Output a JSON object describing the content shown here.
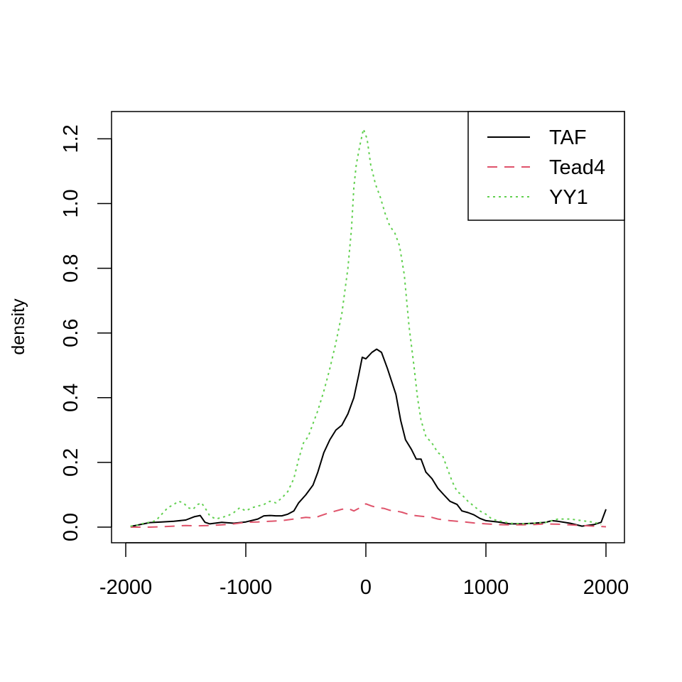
{
  "chart_data": {
    "type": "line",
    "title": "",
    "xlabel": "",
    "ylabel": "density",
    "xlim": [
      -2000,
      2000
    ],
    "ylim": [
      0,
      1.25
    ],
    "x_ticks": [
      "-2000",
      "-1000",
      "0",
      "1000",
      "2000"
    ],
    "y_ticks": [
      "0.0",
      "0.2",
      "0.4",
      "0.6",
      "0.8",
      "1.0",
      "1.2"
    ],
    "grid": false,
    "legend_position": "top-right",
    "series": [
      {
        "name": "TAF",
        "color": "#000000",
        "linestyle": "solid",
        "points": [
          [
            -1960,
            0.002
          ],
          [
            -1880,
            0.008
          ],
          [
            -1800,
            0.014
          ],
          [
            -1700,
            0.016
          ],
          [
            -1600,
            0.018
          ],
          [
            -1500,
            0.022
          ],
          [
            -1430,
            0.032
          ],
          [
            -1380,
            0.036
          ],
          [
            -1340,
            0.015
          ],
          [
            -1300,
            0.01
          ],
          [
            -1200,
            0.015
          ],
          [
            -1100,
            0.012
          ],
          [
            -1000,
            0.016
          ],
          [
            -900,
            0.025
          ],
          [
            -850,
            0.035
          ],
          [
            -800,
            0.036
          ],
          [
            -750,
            0.035
          ],
          [
            -700,
            0.035
          ],
          [
            -650,
            0.04
          ],
          [
            -600,
            0.05
          ],
          [
            -560,
            0.075
          ],
          [
            -500,
            0.1
          ],
          [
            -440,
            0.13
          ],
          [
            -400,
            0.17
          ],
          [
            -350,
            0.23
          ],
          [
            -300,
            0.27
          ],
          [
            -250,
            0.3
          ],
          [
            -200,
            0.315
          ],
          [
            -150,
            0.35
          ],
          [
            -100,
            0.4
          ],
          [
            -60,
            0.47
          ],
          [
            -30,
            0.525
          ],
          [
            0,
            0.52
          ],
          [
            50,
            0.54
          ],
          [
            90,
            0.55
          ],
          [
            130,
            0.54
          ],
          [
            180,
            0.49
          ],
          [
            250,
            0.41
          ],
          [
            290,
            0.33
          ],
          [
            330,
            0.27
          ],
          [
            380,
            0.24
          ],
          [
            420,
            0.21
          ],
          [
            460,
            0.21
          ],
          [
            500,
            0.17
          ],
          [
            550,
            0.15
          ],
          [
            600,
            0.12
          ],
          [
            650,
            0.1
          ],
          [
            700,
            0.08
          ],
          [
            760,
            0.07
          ],
          [
            800,
            0.05
          ],
          [
            850,
            0.045
          ],
          [
            900,
            0.038
          ],
          [
            950,
            0.027
          ],
          [
            1000,
            0.02
          ],
          [
            1100,
            0.016
          ],
          [
            1200,
            0.01
          ],
          [
            1300,
            0.01
          ],
          [
            1400,
            0.012
          ],
          [
            1500,
            0.015
          ],
          [
            1550,
            0.02
          ],
          [
            1600,
            0.018
          ],
          [
            1700,
            0.012
          ],
          [
            1800,
            0.003
          ],
          [
            1900,
            0.008
          ],
          [
            1960,
            0.015
          ],
          [
            2000,
            0.055
          ]
        ]
      },
      {
        "name": "Tead4",
        "color": "#DF536B",
        "linestyle": "dashed",
        "points": [
          [
            -1960,
            0.0
          ],
          [
            -1800,
            0.0
          ],
          [
            -1700,
            0.001
          ],
          [
            -1600,
            0.003
          ],
          [
            -1500,
            0.005
          ],
          [
            -1400,
            0.004
          ],
          [
            -1300,
            0.005
          ],
          [
            -1200,
            0.007
          ],
          [
            -1100,
            0.01
          ],
          [
            -1000,
            0.015
          ],
          [
            -900,
            0.016
          ],
          [
            -800,
            0.018
          ],
          [
            -700,
            0.02
          ],
          [
            -600,
            0.025
          ],
          [
            -500,
            0.03
          ],
          [
            -430,
            0.028
          ],
          [
            -380,
            0.035
          ],
          [
            -300,
            0.045
          ],
          [
            -200,
            0.055
          ],
          [
            -150,
            0.058
          ],
          [
            -100,
            0.05
          ],
          [
            -50,
            0.06
          ],
          [
            0,
            0.072
          ],
          [
            50,
            0.065
          ],
          [
            100,
            0.06
          ],
          [
            150,
            0.058
          ],
          [
            200,
            0.052
          ],
          [
            250,
            0.05
          ],
          [
            300,
            0.046
          ],
          [
            350,
            0.04
          ],
          [
            400,
            0.036
          ],
          [
            450,
            0.034
          ],
          [
            500,
            0.032
          ],
          [
            550,
            0.03
          ],
          [
            600,
            0.025
          ],
          [
            700,
            0.02
          ],
          [
            800,
            0.017
          ],
          [
            900,
            0.013
          ],
          [
            1000,
            0.01
          ],
          [
            1100,
            0.008
          ],
          [
            1200,
            0.007
          ],
          [
            1300,
            0.007
          ],
          [
            1400,
            0.008
          ],
          [
            1500,
            0.01
          ],
          [
            1600,
            0.009
          ],
          [
            1700,
            0.007
          ],
          [
            1800,
            0.005
          ],
          [
            1900,
            0.003
          ],
          [
            2000,
            0.001
          ]
        ]
      },
      {
        "name": "YY1",
        "color": "#61D04F",
        "linestyle": "dotted",
        "points": [
          [
            -1960,
            0.003
          ],
          [
            -1900,
            0.006
          ],
          [
            -1850,
            0.012
          ],
          [
            -1800,
            0.015
          ],
          [
            -1750,
            0.02
          ],
          [
            -1700,
            0.04
          ],
          [
            -1650,
            0.06
          ],
          [
            -1600,
            0.07
          ],
          [
            -1560,
            0.08
          ],
          [
            -1520,
            0.075
          ],
          [
            -1480,
            0.06
          ],
          [
            -1440,
            0.055
          ],
          [
            -1400,
            0.07
          ],
          [
            -1370,
            0.075
          ],
          [
            -1340,
            0.06
          ],
          [
            -1300,
            0.035
          ],
          [
            -1250,
            0.025
          ],
          [
            -1200,
            0.03
          ],
          [
            -1150,
            0.035
          ],
          [
            -1100,
            0.045
          ],
          [
            -1050,
            0.06
          ],
          [
            -1000,
            0.05
          ],
          [
            -950,
            0.06
          ],
          [
            -900,
            0.065
          ],
          [
            -850,
            0.07
          ],
          [
            -800,
            0.08
          ],
          [
            -750,
            0.075
          ],
          [
            -700,
            0.09
          ],
          [
            -650,
            0.11
          ],
          [
            -600,
            0.15
          ],
          [
            -560,
            0.21
          ],
          [
            -520,
            0.26
          ],
          [
            -480,
            0.28
          ],
          [
            -440,
            0.32
          ],
          [
            -400,
            0.36
          ],
          [
            -350,
            0.42
          ],
          [
            -300,
            0.49
          ],
          [
            -250,
            0.57
          ],
          [
            -200,
            0.66
          ],
          [
            -150,
            0.8
          ],
          [
            -120,
            0.92
          ],
          [
            -100,
            1.05
          ],
          [
            -80,
            1.12
          ],
          [
            -50,
            1.18
          ],
          [
            -20,
            1.23
          ],
          [
            10,
            1.2
          ],
          [
            40,
            1.12
          ],
          [
            80,
            1.06
          ],
          [
            120,
            1.02
          ],
          [
            160,
            0.97
          ],
          [
            200,
            0.93
          ],
          [
            240,
            0.91
          ],
          [
            280,
            0.87
          ],
          [
            320,
            0.78
          ],
          [
            360,
            0.62
          ],
          [
            400,
            0.5
          ],
          [
            430,
            0.4
          ],
          [
            460,
            0.33
          ],
          [
            500,
            0.28
          ],
          [
            550,
            0.26
          ],
          [
            600,
            0.23
          ],
          [
            640,
            0.22
          ],
          [
            680,
            0.18
          ],
          [
            720,
            0.14
          ],
          [
            760,
            0.11
          ],
          [
            800,
            0.1
          ],
          [
            850,
            0.08
          ],
          [
            900,
            0.065
          ],
          [
            950,
            0.05
          ],
          [
            1000,
            0.04
          ],
          [
            1050,
            0.025
          ],
          [
            1100,
            0.02
          ],
          [
            1200,
            0.012
          ],
          [
            1300,
            0.01
          ],
          [
            1400,
            0.012
          ],
          [
            1500,
            0.015
          ],
          [
            1550,
            0.02
          ],
          [
            1600,
            0.025
          ],
          [
            1700,
            0.025
          ],
          [
            1800,
            0.02
          ],
          [
            1900,
            0.015
          ],
          [
            1960,
            0.008
          ]
        ]
      }
    ]
  }
}
